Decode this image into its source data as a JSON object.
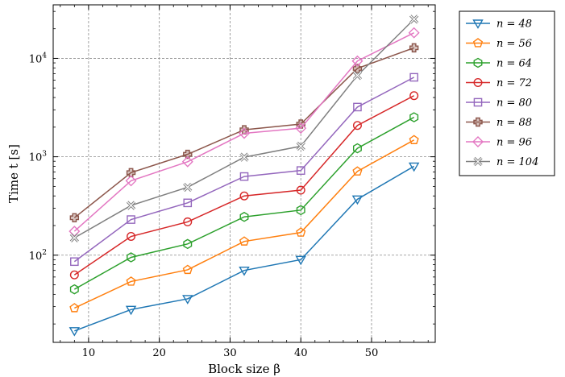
{
  "chart_data": {
    "type": "line",
    "xlabel": "Block size β",
    "ylabel": "Time t [s]",
    "y_scale": "log",
    "xlim": [
      5,
      59
    ],
    "ylim": [
      13,
      35000
    ],
    "x_ticks": [
      10,
      20,
      30,
      40,
      50
    ],
    "y_ticks": [
      {
        "value": 100,
        "base": "10",
        "exp": "2"
      },
      {
        "value": 1000,
        "base": "10",
        "exp": "3"
      },
      {
        "value": 10000,
        "base": "10",
        "exp": "4"
      }
    ],
    "grid": true,
    "legend_placement": "outside-right-top",
    "x": [
      8,
      16,
      24,
      32,
      40,
      48,
      56
    ],
    "series": [
      {
        "name": "n = 48",
        "color": "#1f77b4",
        "marker": "triangle-down",
        "values": [
          17,
          28,
          36,
          70,
          90,
          370,
          800
        ]
      },
      {
        "name": "n = 56",
        "color": "#ff7f0e",
        "marker": "pentagon",
        "values": [
          29,
          54,
          71,
          138,
          170,
          710,
          1480
        ]
      },
      {
        "name": "n = 64",
        "color": "#2ca02c",
        "marker": "hexagon",
        "values": [
          45,
          95,
          130,
          245,
          287,
          1220,
          2520
        ]
      },
      {
        "name": "n = 72",
        "color": "#d62728",
        "marker": "circle",
        "values": [
          63,
          155,
          218,
          400,
          458,
          2080,
          4180
        ]
      },
      {
        "name": "n = 80",
        "color": "#9467bd",
        "marker": "square",
        "values": [
          86,
          230,
          340,
          630,
          725,
          3200,
          6420
        ]
      },
      {
        "name": "n = 88",
        "color": "#8c564b",
        "marker": "plus",
        "values": [
          240,
          690,
          1060,
          1880,
          2150,
          7900,
          12800
        ]
      },
      {
        "name": "n = 96",
        "color": "#e377c2",
        "marker": "diamond",
        "values": [
          175,
          570,
          890,
          1730,
          1950,
          9400,
          18200
        ]
      },
      {
        "name": "n = 104",
        "color": "#7f7f7f",
        "marker": "x-thick",
        "values": [
          150,
          320,
          490,
          990,
          1280,
          6700,
          25000
        ]
      }
    ]
  }
}
